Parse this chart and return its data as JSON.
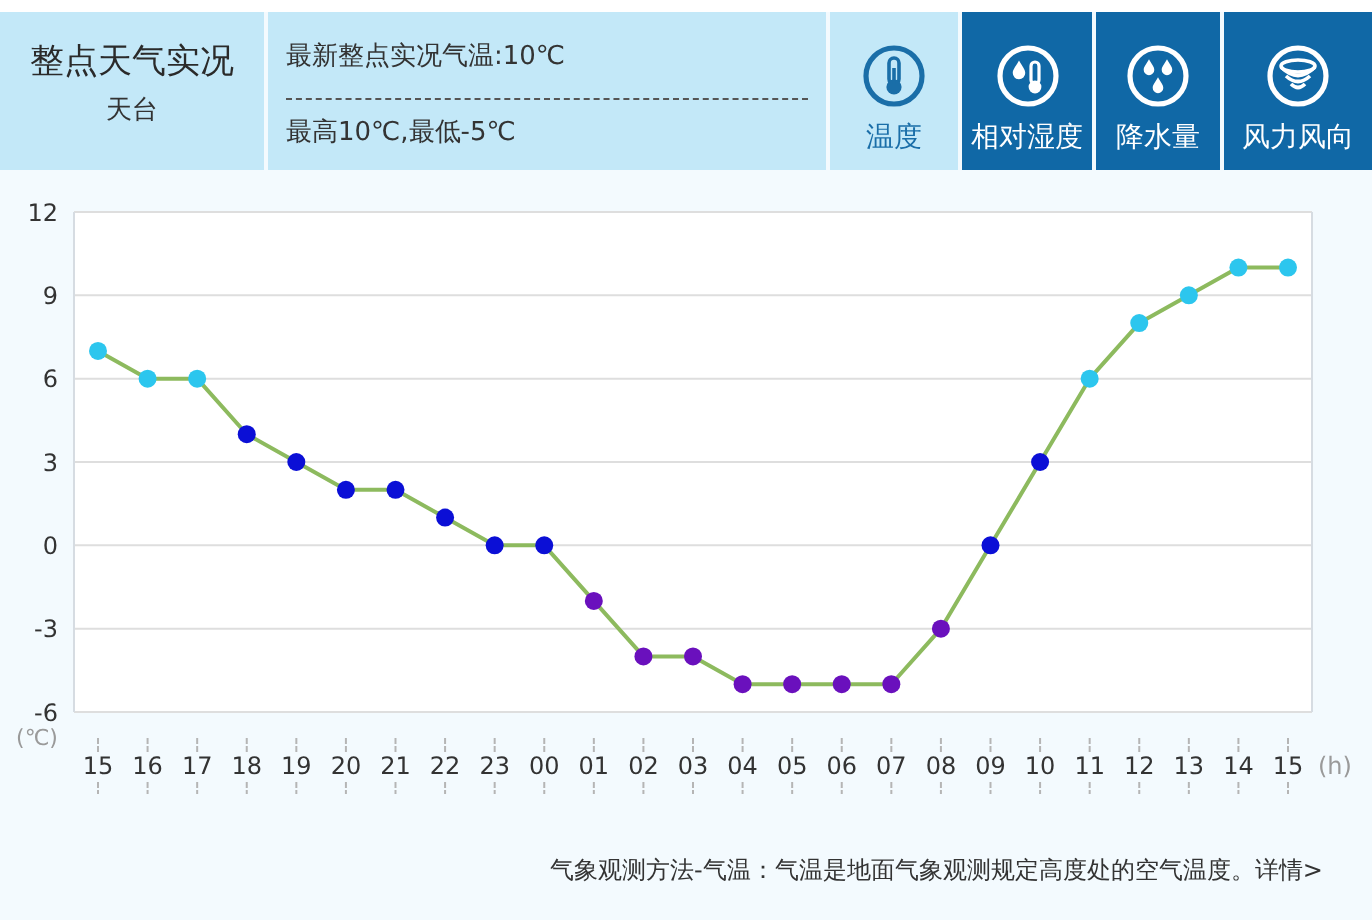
{
  "chart_data": {
    "type": "line",
    "title": "整点天气实况",
    "subtitle": "天台",
    "xlabel": "(h)",
    "ylabel": "(℃)",
    "annotations": [
      "最新整点实况气温:10℃",
      "最高10℃,最低-5℃",
      "温度",
      "相对湿度",
      "降水量",
      "风力风向",
      "气象观测方法-气温：气温是地面气象观测规定高度处的空气温度。详情>"
    ],
    "categories": [
      "15",
      "16",
      "17",
      "18",
      "19",
      "20",
      "21",
      "22",
      "23",
      "00",
      "01",
      "02",
      "03",
      "04",
      "05",
      "06",
      "07",
      "08",
      "09",
      "10",
      "11",
      "12",
      "13",
      "14",
      "15"
    ],
    "series": [
      {
        "color": "#8dba5e",
        "values": [
          7,
          6,
          6,
          4,
          3,
          2,
          2,
          1,
          0,
          0,
          -2,
          -4,
          -4,
          -5,
          -5,
          -5,
          -5,
          -3,
          0,
          3,
          6,
          8,
          9,
          10,
          10
        ],
        "colors": [
          "#2cc6ee",
          "#2cc6ee",
          "#2cc6ee",
          "#0b0fd6",
          "#0b0fd6",
          "#0b0fd6",
          "#0b0fd6",
          "#0b0fd6",
          "#0b0fd6",
          "#0b0fd6",
          "#6a10bd",
          "#6a10bd",
          "#6a10bd",
          "#6a10bd",
          "#6a10bd",
          "#6a10bd",
          "#6a10bd",
          "#6a10bd",
          "#0b0fd6",
          "#0b0fd6",
          "#2cc6ee",
          "#2cc6ee",
          "#2cc6ee",
          "#2cc6ee",
          "#2cc6ee"
        ]
      }
    ],
    "ylim": [
      -6,
      12
    ],
    "yticks": [
      -6,
      -3,
      0,
      3,
      6,
      9,
      12
    ],
    "grid": "y",
    "marker": "circle",
    "line_style": "solid"
  }
}
